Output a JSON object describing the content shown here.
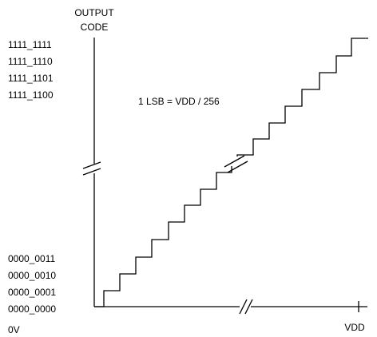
{
  "axes": {
    "y_title_line1": "OUTPUT",
    "y_title_line2": "CODE",
    "x_start_label": "0V",
    "x_end_label": "VDD"
  },
  "codes": {
    "top": [
      "1111_1111",
      "1111_1110",
      "1111_1101",
      "1111_1100"
    ],
    "bottom": [
      "0000_0011",
      "0000_0010",
      "0000_0001",
      "0000_0000"
    ]
  },
  "annotation": "1 LSB = VDD / 256",
  "staircase": {
    "lower_steps": 8,
    "upper_steps": 8,
    "axis_breaks": [
      "y-axis",
      "x-axis",
      "staircase"
    ]
  }
}
